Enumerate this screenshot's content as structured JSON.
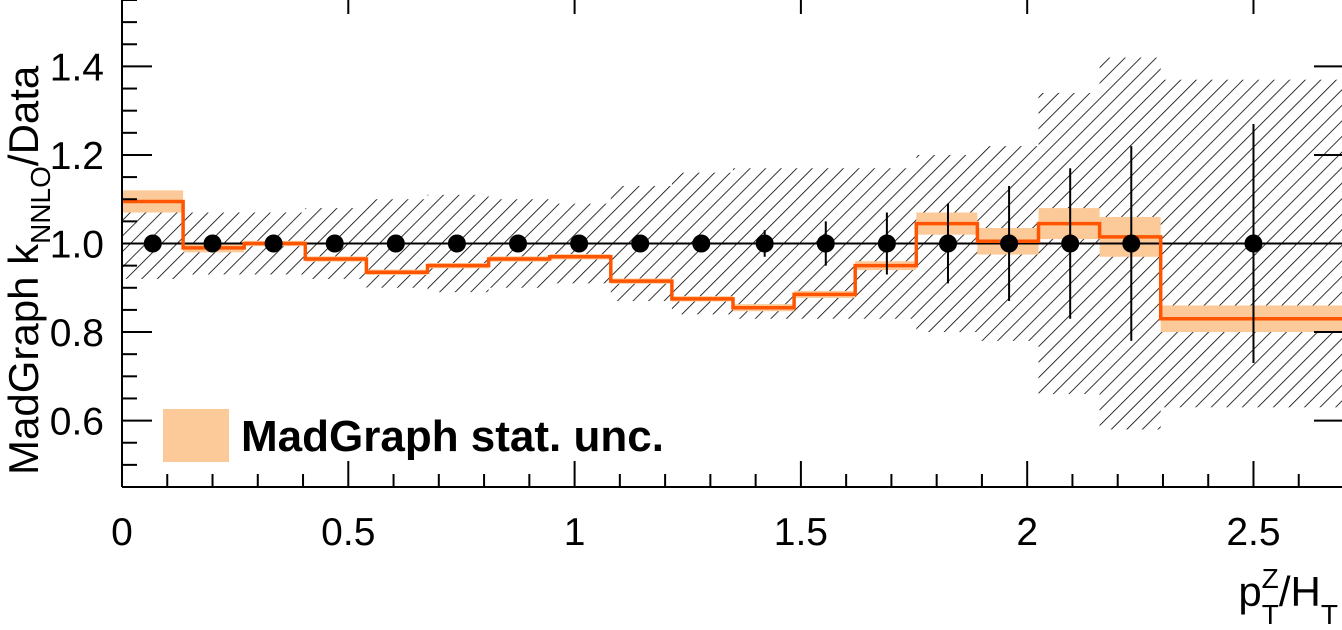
{
  "chart_data": {
    "type": "line",
    "xlabel": {
      "base": "p",
      "sup": "Z",
      "sub": "T",
      "mid": "/H",
      "sub2": "T"
    },
    "ylabel": {
      "pre": "MadGraph k",
      "sub": "NNLO",
      "post": "/Data"
    },
    "xlim": [
      0,
      2.7
    ],
    "ylim": [
      0.45,
      1.55
    ],
    "x_ticks": [
      0,
      0.5,
      1,
      1.5,
      2,
      2.5
    ],
    "x_tick_labels": [
      "0",
      "0.5",
      "1",
      "1.5",
      "2",
      "2.5"
    ],
    "y_ticks": [
      0.6,
      0.8,
      1.0,
      1.2,
      1.4
    ],
    "y_tick_labels": [
      "0.6",
      "0.8",
      "1.0",
      "1.2",
      "1.4"
    ],
    "reference_line": 1.0,
    "legend": {
      "label": "MadGraph stat. unc.",
      "color": "#fcc999",
      "position": "bottom-left"
    },
    "colors": {
      "madgraph_line": "#ff5500",
      "madgraph_band": "#fcc999",
      "data_markers": "#000000",
      "data_unc_hatch": "#000000"
    },
    "bins": [
      {
        "lo": 0.0,
        "hi": 0.135,
        "x": 0.068,
        "madgraph": 1.095,
        "mg_unc": 0.025,
        "data_unc": 0.08,
        "data_err": 0.0
      },
      {
        "lo": 0.135,
        "hi": 0.27,
        "x": 0.2,
        "madgraph": 0.99,
        "mg_unc": 0.01,
        "data_unc": 0.07,
        "data_err": 0.0
      },
      {
        "lo": 0.27,
        "hi": 0.405,
        "x": 0.335,
        "madgraph": 1.0,
        "mg_unc": 0.006,
        "data_unc": 0.07,
        "data_err": 0.0
      },
      {
        "lo": 0.405,
        "hi": 0.54,
        "x": 0.47,
        "madgraph": 0.965,
        "mg_unc": 0.006,
        "data_unc": 0.08,
        "data_err": 0.0
      },
      {
        "lo": 0.54,
        "hi": 0.675,
        "x": 0.605,
        "madgraph": 0.935,
        "mg_unc": 0.006,
        "data_unc": 0.1,
        "data_err": 0.0
      },
      {
        "lo": 0.675,
        "hi": 0.81,
        "x": 0.74,
        "madgraph": 0.95,
        "mg_unc": 0.006,
        "data_unc": 0.11,
        "data_err": 0.0
      },
      {
        "lo": 0.81,
        "hi": 0.945,
        "x": 0.875,
        "madgraph": 0.965,
        "mg_unc": 0.006,
        "data_unc": 0.1,
        "data_err": 0.0
      },
      {
        "lo": 0.945,
        "hi": 1.08,
        "x": 1.01,
        "madgraph": 0.97,
        "mg_unc": 0.006,
        "data_unc": 0.09,
        "data_err": 0.0
      },
      {
        "lo": 1.08,
        "hi": 1.215,
        "x": 1.145,
        "madgraph": 0.915,
        "mg_unc": 0.006,
        "data_unc": 0.13,
        "data_err": 0.0
      },
      {
        "lo": 1.215,
        "hi": 1.35,
        "x": 1.28,
        "madgraph": 0.875,
        "mg_unc": 0.006,
        "data_unc": 0.16,
        "data_err": 0.0
      },
      {
        "lo": 1.35,
        "hi": 1.485,
        "x": 1.42,
        "madgraph": 0.855,
        "mg_unc": 0.008,
        "data_unc": 0.17,
        "data_err": 0.03
      },
      {
        "lo": 1.485,
        "hi": 1.62,
        "x": 1.555,
        "madgraph": 0.885,
        "mg_unc": 0.008,
        "data_unc": 0.17,
        "data_err": 0.05
      },
      {
        "lo": 1.62,
        "hi": 1.755,
        "x": 1.69,
        "madgraph": 0.95,
        "mg_unc": 0.01,
        "data_unc": 0.17,
        "data_err": 0.07
      },
      {
        "lo": 1.755,
        "hi": 1.89,
        "x": 1.825,
        "madgraph": 1.045,
        "mg_unc": 0.025,
        "data_unc": 0.2,
        "data_err": 0.09
      },
      {
        "lo": 1.89,
        "hi": 2.025,
        "x": 1.96,
        "madgraph": 1.005,
        "mg_unc": 0.03,
        "data_unc": 0.22,
        "data_err": 0.13
      },
      {
        "lo": 2.025,
        "hi": 2.16,
        "x": 2.095,
        "madgraph": 1.045,
        "mg_unc": 0.035,
        "data_unc": 0.34,
        "data_err": 0.17
      },
      {
        "lo": 2.16,
        "hi": 2.295,
        "x": 2.23,
        "madgraph": 1.015,
        "mg_unc": 0.045,
        "data_unc": 0.42,
        "data_err": 0.22
      },
      {
        "lo": 2.295,
        "hi": 2.7,
        "x": 2.5,
        "madgraph": 0.83,
        "mg_unc": 0.03,
        "data_unc": 0.37,
        "data_err": 0.27
      }
    ],
    "data_points": [
      1.0,
      1.0,
      1.0,
      1.0,
      1.0,
      1.0,
      1.0,
      1.0,
      1.0,
      1.0,
      1.0,
      1.0,
      1.0,
      1.0,
      1.0,
      1.0,
      1.0,
      1.0
    ]
  }
}
